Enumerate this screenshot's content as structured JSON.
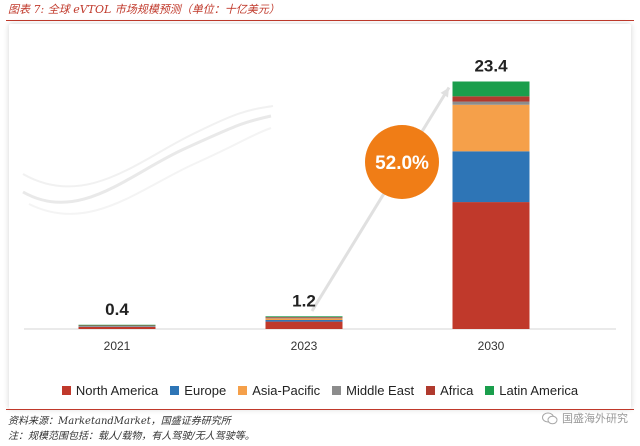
{
  "header": {
    "title": "图表 7:  全球 eVTOL 市场规模预测（单位：十亿美元）"
  },
  "chart_data": {
    "type": "bar",
    "stacked": true,
    "title": "全球 eVTOL 市场规模预测（单位：十亿美元）",
    "xlabel": "",
    "ylabel": "",
    "ylim": [
      0,
      26
    ],
    "categories": [
      "2021",
      "2023",
      "2030"
    ],
    "totals": [
      "0.4",
      "1.2",
      "23.4"
    ],
    "series": [
      {
        "name": "North America",
        "color": "#c0392b",
        "values": [
          0.2,
          0.7,
          12.0
        ]
      },
      {
        "name": "Europe",
        "color": "#2e75b6",
        "values": [
          0.06,
          0.15,
          4.8
        ]
      },
      {
        "name": "Asia-Pacific",
        "color": "#f5a04a",
        "values": [
          0.06,
          0.15,
          4.4
        ]
      },
      {
        "name": "Middle East",
        "color": "#8c8c8c",
        "values": [
          0.03,
          0.08,
          0.3
        ]
      },
      {
        "name": "Africa",
        "color": "#b03a2e",
        "values": [
          0.02,
          0.05,
          0.5
        ]
      },
      {
        "name": "Latin America",
        "color": "#1a9e4c",
        "values": [
          0.03,
          0.07,
          1.4
        ]
      }
    ],
    "annotation": {
      "text": "52.0%",
      "color": "#f07d16",
      "meaning": "CAGR 2023-2030"
    },
    "grid": false,
    "legend_position": "bottom"
  },
  "footer": {
    "source": "资料来源：MarketandMarket，国盛证券研究所",
    "note": "注：规模范围包括：载人/载物，有人驾驶/无人驾驶等。",
    "watermark": "国盛海外研究"
  }
}
